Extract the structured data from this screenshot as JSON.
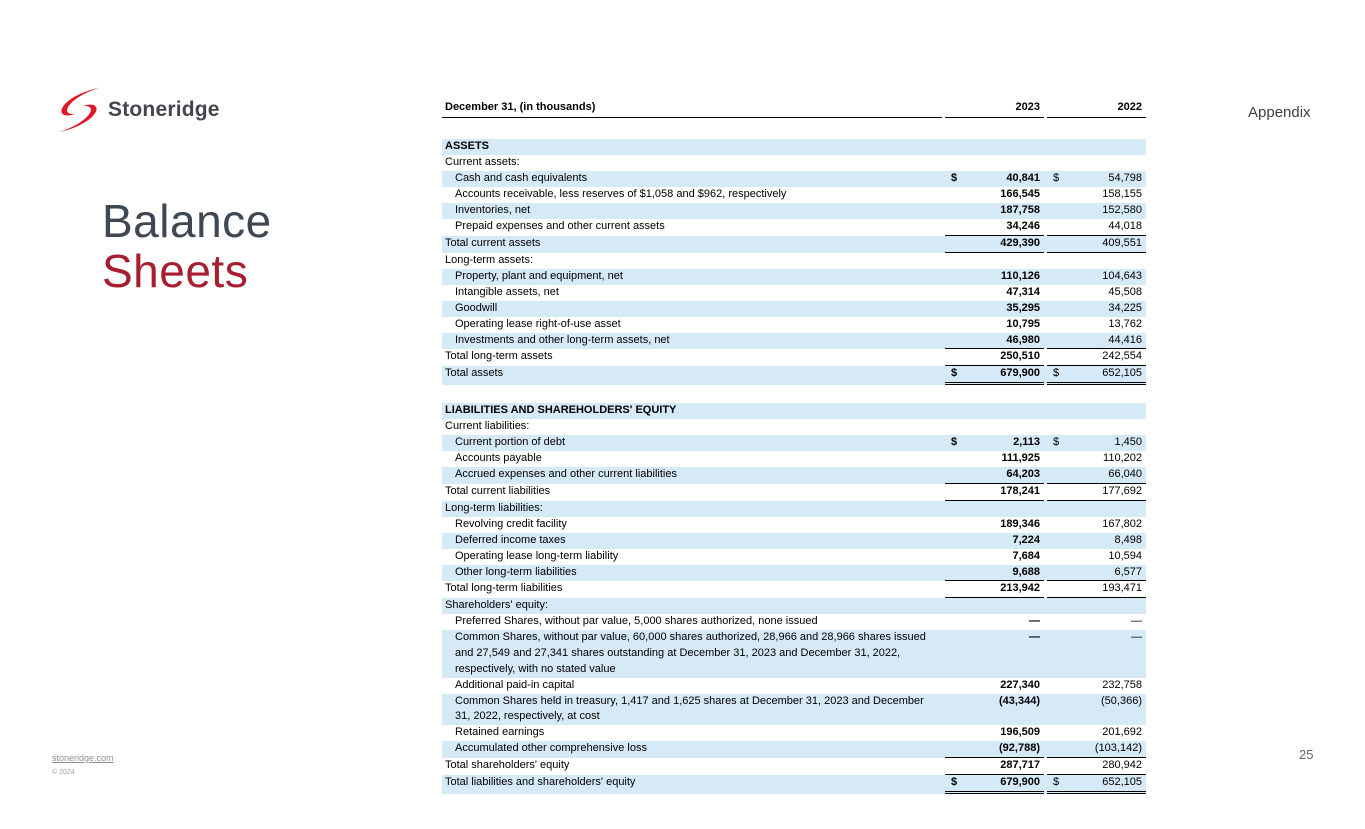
{
  "slide": {
    "logo_text": "Stoneridge",
    "title_line1": "Balance",
    "title_line2": "Sheets",
    "appendix": "Appendix",
    "footer_link": "stoneridge.com",
    "footer_copyright": "© 2024",
    "page_number": "25"
  },
  "colors": {
    "stripe": "#d5e9f7",
    "title_gray": "#3f4752",
    "title_red": "#a81e31",
    "logo_red": "#e01826"
  },
  "table": {
    "header_label": "December 31, (in thousands)",
    "col_2023": "2023",
    "col_2022": "2022",
    "rows": [
      {
        "label": "ASSETS",
        "type": "section"
      },
      {
        "label": "Current assets:",
        "type": "sub"
      },
      {
        "label": "Cash and cash equivalents",
        "ind": 1,
        "d1": "$",
        "d2": "$",
        "v1": "40,841",
        "v2": "54,798"
      },
      {
        "label": "Accounts receivable, less reserves of $1,058 and $962, respectively",
        "ind": 1,
        "v1": "166,545",
        "v2": "158,155"
      },
      {
        "label": "Inventories, net",
        "ind": 1,
        "v1": "187,758",
        "v2": "152,580"
      },
      {
        "label": "Prepaid expenses and other current assets",
        "ind": 1,
        "v1": "34,246",
        "v2": "44,018",
        "u": "s"
      },
      {
        "label": "Total current assets",
        "v1": "429,390",
        "v2": "409,551",
        "u": "s"
      },
      {
        "label": "Long-term assets:",
        "type": "sub"
      },
      {
        "label": "Property, plant and equipment, net",
        "ind": 1,
        "v1": "110,126",
        "v2": "104,643"
      },
      {
        "label": "Intangible assets, net",
        "ind": 1,
        "v1": "47,314",
        "v2": "45,508"
      },
      {
        "label": "Goodwill",
        "ind": 1,
        "v1": "35,295",
        "v2": "34,225"
      },
      {
        "label": "Operating lease right-of-use asset",
        "ind": 1,
        "v1": "10,795",
        "v2": "13,762"
      },
      {
        "label": "Investments and other long-term assets, net",
        "ind": 1,
        "v1": "46,980",
        "v2": "44,416",
        "u": "s"
      },
      {
        "label": "Total long-term assets",
        "v1": "250,510",
        "v2": "242,554",
        "u": "s"
      },
      {
        "label": "Total assets",
        "d1": "$",
        "d2": "$",
        "v1": "679,900",
        "v2": "652,105",
        "u": "d"
      },
      {
        "type": "gap"
      },
      {
        "label": "LIABILITIES AND SHAREHOLDERS' EQUITY",
        "type": "section"
      },
      {
        "label": "Current liabilities:",
        "type": "sub"
      },
      {
        "label": "Current portion of debt",
        "ind": 1,
        "d1": "$",
        "d2": "$",
        "v1": "2,113",
        "v2": "1,450"
      },
      {
        "label": "Accounts payable",
        "ind": 1,
        "v1": "111,925",
        "v2": "110,202"
      },
      {
        "label": "Accrued expenses and other current liabilities",
        "ind": 1,
        "v1": "64,203",
        "v2": "66,040",
        "u": "s"
      },
      {
        "label": "Total current liabilities",
        "v1": "178,241",
        "v2": "177,692",
        "u": "s"
      },
      {
        "label": "Long-term liabilities:",
        "type": "sub"
      },
      {
        "label": "Revolving credit facility",
        "ind": 1,
        "v1": "189,346",
        "v2": "167,802"
      },
      {
        "label": "Deferred income taxes",
        "ind": 1,
        "v1": "7,224",
        "v2": "8,498"
      },
      {
        "label": "Operating lease long-term liability",
        "ind": 1,
        "v1": "7,684",
        "v2": "10,594"
      },
      {
        "label": "Other long-term liabilities",
        "ind": 1,
        "v1": "9,688",
        "v2": "6,577",
        "u": "s"
      },
      {
        "label": "Total long-term liabilities",
        "v1": "213,942",
        "v2": "193,471",
        "u": "s"
      },
      {
        "label": "Shareholders' equity:",
        "type": "sub"
      },
      {
        "label": "Preferred Shares, without par value, 5,000 shares authorized, none issued",
        "ind": 1,
        "v1": "—",
        "v2": "—"
      },
      {
        "label": "Common Shares, without par value, 60,000 shares authorized, 28,966 and 28,966 shares issued and 27,549 and 27,341 shares outstanding at December 31, 2023 and December 31, 2022, respectively, with no stated value",
        "ind": 1,
        "v1": "—",
        "v2": "—"
      },
      {
        "label": "Additional paid-in capital",
        "ind": 1,
        "v1": "227,340",
        "v2": "232,758"
      },
      {
        "label": "Common Shares held in treasury, 1,417 and 1,625 shares at December 31, 2023 and December 31, 2022, respectively, at cost",
        "ind": 1,
        "v1": "(43,344)",
        "v2": "(50,366)"
      },
      {
        "label": "Retained earnings",
        "ind": 1,
        "v1": "196,509",
        "v2": "201,692"
      },
      {
        "label": "Accumulated other comprehensive loss",
        "ind": 1,
        "v1": "(92,788)",
        "v2": "(103,142)",
        "u": "s"
      },
      {
        "label": "Total shareholders' equity",
        "v1": "287,717",
        "v2": "280,942",
        "u": "s"
      },
      {
        "label": "Total liabilities and shareholders' equity",
        "d1": "$",
        "d2": "$",
        "v1": "679,900",
        "v2": "652,105",
        "u": "d"
      }
    ]
  }
}
